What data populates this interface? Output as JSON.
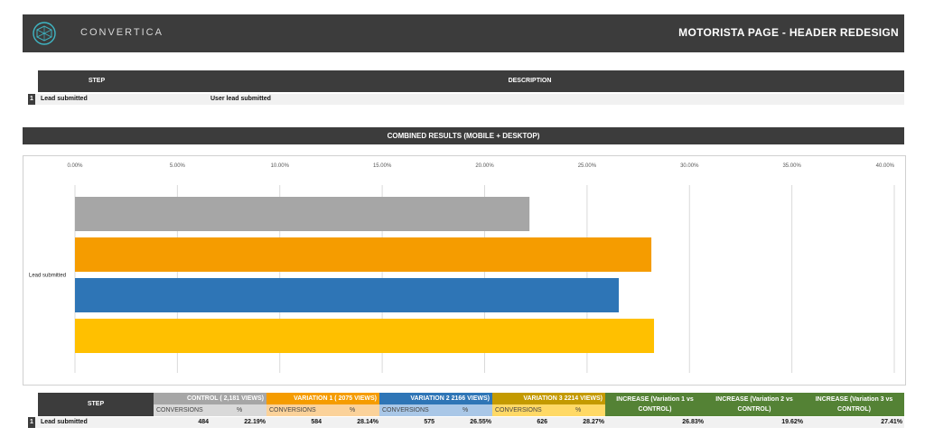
{
  "header": {
    "brand": "CONVERTICA",
    "page_title": "MOTORISTA PAGE - HEADER REDESIGN",
    "colors": {
      "bar": "#3c3c3c",
      "logo": "#3fb6c4"
    }
  },
  "steps_table": {
    "col_step": "STEP",
    "col_description": "DESCRIPTION",
    "rows": [
      {
        "num": "1",
        "step": "Lead submitted",
        "description": "User lead submitted"
      }
    ]
  },
  "combined_title": "COMBINED RESULTS (MOBILE + DESKTOP)",
  "chart_data": {
    "type": "bar",
    "orientation": "horizontal",
    "categories": [
      "Lead submitted"
    ],
    "xlim": [
      0,
      40
    ],
    "ticks": [
      "0.00%",
      "5.00%",
      "10.00%",
      "15.00%",
      "20.00%",
      "25.00%",
      "30.00%",
      "35.00%",
      "40.00%"
    ],
    "grid": true,
    "series": [
      {
        "values": [
          22.19
        ],
        "color": "#a6a6a6"
      },
      {
        "values": [
          28.14
        ],
        "color": "#f59c00"
      },
      {
        "values": [
          26.55
        ],
        "color": "#2e75b6"
      },
      {
        "values": [
          28.27
        ],
        "color": "#ffc000"
      }
    ]
  },
  "results_table": {
    "col_step": "STEP",
    "control_header": "CONTROL ( 2,181 VIEWS)",
    "variation1_header": "VARIATION 1 ( 2075 VIEWS)",
    "variation2_header": "VARIATION 2 2166 VIEWS)",
    "variation3_header": "VARIATION 3 2214 VIEWS)",
    "conversions_label": "CONVERSIONS",
    "percent_label": "%",
    "increase1": "INCREASE (Variation 1 vs CONTROL)",
    "increase2": "INCREASE (Variation 2 vs CONTROL)",
    "increase3": "INCREASE (Variation 3 vs CONTROL)",
    "row": {
      "num": "1",
      "step": "Lead submitted",
      "control_conv": "484",
      "control_pct": "22.19%",
      "v1_conv": "584",
      "v1_pct": "28.14%",
      "v2_conv": "575",
      "v2_pct": "26.55%",
      "v3_conv": "626",
      "v3_pct": "28.27%",
      "inc1": "26.83%",
      "inc2": "19.62%",
      "inc3": "27.41%"
    }
  }
}
